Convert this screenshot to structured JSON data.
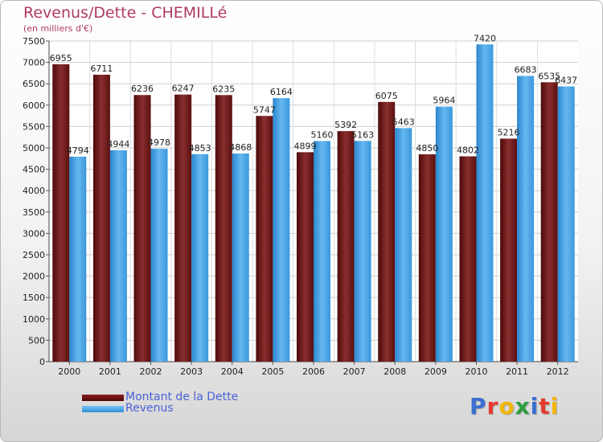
{
  "chart_data": {
    "type": "bar",
    "title": "Revenus/Dette - CHEMILLé",
    "subtitle": "(en milliers d'€)",
    "categories": [
      "2000",
      "2001",
      "2002",
      "2003",
      "2004",
      "2005",
      "2006",
      "2007",
      "2008",
      "2009",
      "2010",
      "2011",
      "2012"
    ],
    "series": [
      {
        "name": "Montant de la Dette",
        "color": "#6e1a1a",
        "values": [
          6955,
          6711,
          6236,
          6247,
          6235,
          5747,
          4899,
          5392,
          6075,
          4850,
          4802,
          5216,
          6535
        ]
      },
      {
        "name": "Revenus",
        "color": "#4aa8e8",
        "values": [
          4794,
          4944,
          4978,
          4853,
          4868,
          6164,
          5160,
          5163,
          5463,
          5964,
          7420,
          6683,
          6437
        ]
      }
    ],
    "ylim": [
      0,
      7500
    ],
    "yticks": [
      0,
      500,
      1000,
      1500,
      2000,
      2500,
      3000,
      3500,
      4000,
      4500,
      5000,
      5500,
      6000,
      6500,
      7000,
      7500
    ],
    "grid": true,
    "legend_position": "bottom-left"
  },
  "logo": {
    "text": "Proxiti",
    "letters": [
      {
        "char": "P",
        "color": "#3b6fd1"
      },
      {
        "char": "r",
        "color": "#e63b2e"
      },
      {
        "char": "o",
        "color": "#f2b705"
      },
      {
        "char": "x",
        "color": "#2e9e3e"
      },
      {
        "char": "i",
        "color": "#3b6fd1"
      },
      {
        "char": "t",
        "color": "#e63b2e"
      },
      {
        "char": "i",
        "color": "#f2b705"
      }
    ]
  }
}
